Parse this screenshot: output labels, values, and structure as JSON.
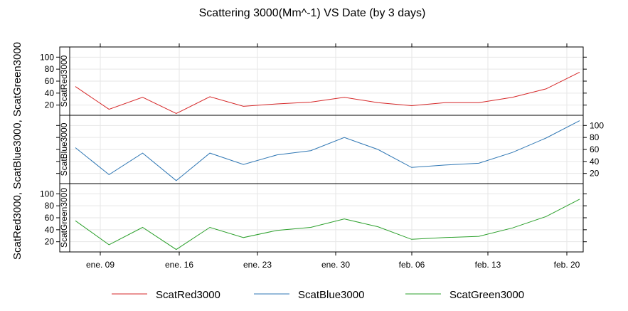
{
  "chart_data": {
    "type": "line",
    "title": "Scattering 3000(Mm^-1) VS Date (by 3 days)",
    "ylabel": "ScatRed3000, ScatBlue3000, ScatGreen3000",
    "xlabel": "",
    "x": [
      "ene. 06",
      "ene. 09",
      "ene. 12",
      "ene. 15",
      "ene. 18",
      "ene. 21",
      "ene. 24",
      "ene. 27",
      "ene. 30",
      "feb. 02",
      "feb. 05",
      "feb. 08",
      "feb. 11",
      "feb. 14",
      "feb. 17",
      "feb. 20"
    ],
    "x_tick_labels": [
      "ene. 09",
      "ene. 16",
      "ene. 23",
      "ene. 30",
      "feb. 06",
      "feb. 13",
      "feb. 20"
    ],
    "ylim": [
      3,
      117
    ],
    "y_ticks": [
      20,
      40,
      60,
      80,
      100
    ],
    "grid": true,
    "layout": "stacked panels, one per series",
    "series": [
      {
        "name": "ScatRed3000",
        "color": "#d62728",
        "values": [
          51,
          13,
          33,
          6,
          34,
          18,
          22,
          25,
          33,
          24,
          19,
          24,
          24,
          33,
          47,
          75
        ]
      },
      {
        "name": "ScatBlue3000",
        "color": "#2f77b4",
        "values": [
          63,
          18,
          54,
          8,
          54,
          35,
          51,
          58,
          80,
          60,
          30,
          34,
          37,
          55,
          79,
          108
        ]
      },
      {
        "name": "ScatGreen3000",
        "color": "#2ca02c",
        "values": [
          55,
          15,
          44,
          7,
          44,
          27,
          39,
          44,
          58,
          45,
          24,
          27,
          29,
          43,
          62,
          91
        ]
      }
    ],
    "legend": {
      "position": "bottom",
      "items": [
        "ScatRed3000",
        "ScatBlue3000",
        "ScatGreen3000"
      ]
    }
  }
}
